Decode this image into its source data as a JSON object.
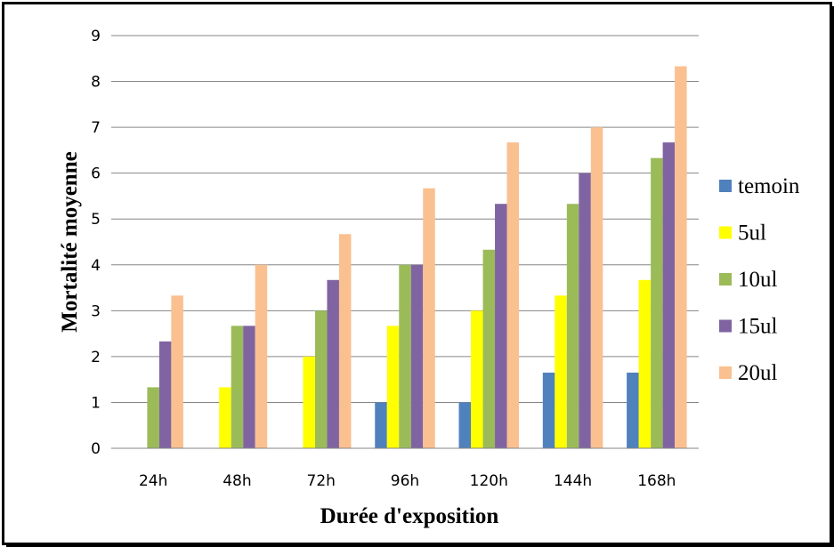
{
  "chart_data": {
    "type": "bar",
    "title": "",
    "xlabel": "Durée d'exposition",
    "ylabel": "Mortalité moyenne",
    "ylim": [
      0,
      9
    ],
    "yticks": [
      "0",
      "1",
      "2",
      "3",
      "4",
      "5",
      "6",
      "7",
      "8",
      "9"
    ],
    "grid": true,
    "legend_position": "right",
    "categories": [
      "24h",
      "48h",
      "72h",
      "96h",
      "120h",
      "144h",
      "168h"
    ],
    "series": [
      {
        "name": "temoin",
        "color": "#4f81bd",
        "values": [
          0,
          0,
          0,
          1,
          1,
          1.65,
          1.65
        ]
      },
      {
        "name": "5ul",
        "color": "#ffff00",
        "values": [
          0,
          1.33,
          2,
          2.67,
          3,
          3.33,
          3.67
        ]
      },
      {
        "name": "10ul",
        "color": "#9bbb59",
        "values": [
          1.33,
          2.67,
          3,
          4,
          4.33,
          5.33,
          6.33
        ]
      },
      {
        "name": "15ul",
        "color": "#8064a2",
        "values": [
          2.33,
          2.67,
          3.67,
          4,
          5.33,
          6,
          6.67
        ]
      },
      {
        "name": "20ul",
        "color": "#fac090",
        "values": [
          3.33,
          4,
          4.67,
          5.67,
          6.67,
          7,
          8.33
        ]
      }
    ]
  }
}
